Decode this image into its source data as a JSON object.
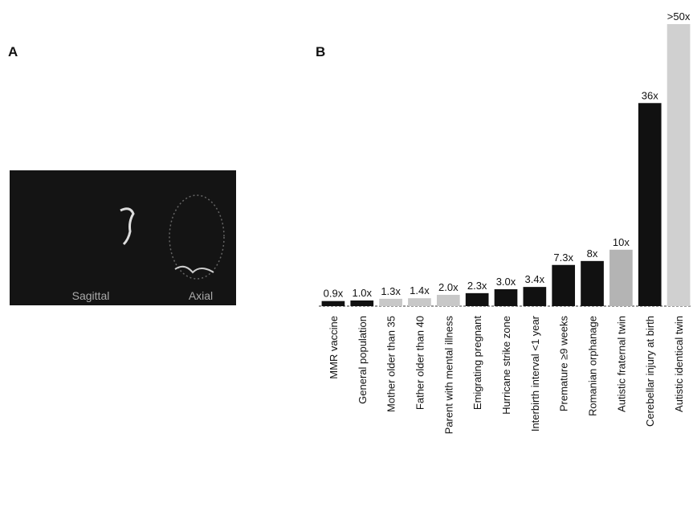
{
  "panel_a": {
    "label": "A",
    "captions": [
      "Sagittal",
      "Axial"
    ]
  },
  "chart_data": {
    "type": "bar",
    "panel_label": "B",
    "categories": [
      "MMR vaccine",
      "General population",
      "Mother older than 35",
      "Father older than 40",
      "Parent with mental illness",
      "Emigrating pregnant",
      "Hurricane strike zone",
      "Interbirth interval <1 year",
      "Premature ≥9 weeks",
      "Romanian orphanage",
      "Autistic fraternal twin",
      "Cerebellar injury at birth",
      "Autistic identical twin"
    ],
    "values": [
      0.9,
      1.0,
      1.3,
      1.4,
      2.0,
      2.3,
      3.0,
      3.4,
      7.3,
      8,
      10,
      36,
      50
    ],
    "value_labels": [
      "0.9x",
      "1.0x",
      "1.3x",
      "1.4x",
      "2.0x",
      "2.3x",
      "3.0x",
      "3.4x",
      "7.3x",
      "8x",
      "10x",
      "36x",
      ">50x"
    ],
    "colors": [
      "#111111",
      "#111111",
      "#c8c8c8",
      "#c8c8c8",
      "#c8c8c8",
      "#111111",
      "#111111",
      "#111111",
      "#111111",
      "#111111",
      "#b4b4b4",
      "#111111",
      "#d0d0d0"
    ]
  }
}
